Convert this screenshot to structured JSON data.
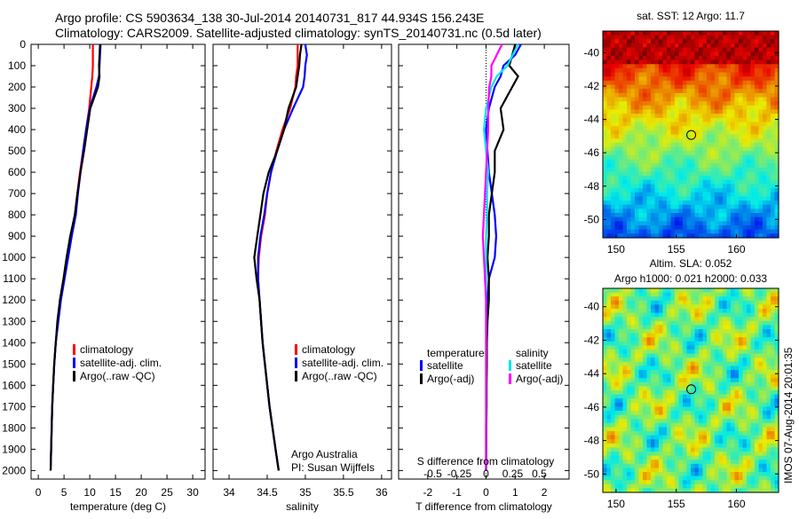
{
  "title_line1": "Argo profile: CS 5903634_138 30-Jul-2014 20140731_817 44.934S 156.243E",
  "title_line2": "Climatology: CARS2009. Satellite-adjusted climatology: synTS_20140731.nc (0.5d later)",
  "colors": {
    "climatology": "#ff0000",
    "satellite": "#0000ff",
    "argo": "#000000",
    "sal_satellite": "#00e5ee",
    "sal_argo": "#ff00ff"
  },
  "chart_data": [
    {
      "type": "line",
      "xlabel": "temperature (deg C)",
      "ylabel": "",
      "xlim": [
        -1.4,
        32.4
      ],
      "ylim": [
        2040,
        0
      ],
      "xticks": [
        "0",
        "5",
        "10",
        "15",
        "20",
        "25",
        "30"
      ],
      "xtick_vals": [
        0,
        5,
        10,
        15,
        20,
        25,
        30
      ],
      "yticks": [
        "0",
        "100",
        "200",
        "300",
        "400",
        "500",
        "600",
        "700",
        "800",
        "900",
        "1000",
        "1100",
        "1200",
        "1300",
        "1400",
        "1500",
        "1600",
        "1700",
        "1800",
        "1900",
        "2000"
      ],
      "depth": [
        0,
        50,
        100,
        150,
        200,
        300,
        400,
        500,
        600,
        700,
        800,
        900,
        1000,
        1100,
        1200,
        1300,
        1400,
        1500,
        1600,
        1700,
        1800,
        1900,
        2000
      ],
      "legend": [
        "climatology",
        "satellite-adj. clim.",
        "Argo(..raw -QC)"
      ],
      "series": [
        {
          "name": "climatology",
          "values": [
            10.6,
            10.6,
            10.6,
            10.5,
            10.3,
            9.9,
            9.3,
            8.7,
            8.1,
            7.6,
            7.1,
            6.3,
            5.6,
            5.0,
            4.3,
            3.8,
            3.4,
            3.1,
            2.9,
            2.7,
            2.6,
            2.5,
            2.4
          ]
        },
        {
          "name": "satellite-adj. clim.",
          "values": [
            12.1,
            12.0,
            11.9,
            11.8,
            11.3,
            10.0,
            9.3,
            8.7,
            8.2,
            7.7,
            7.3,
            6.5,
            5.8,
            5.1,
            4.4,
            3.9,
            3.4,
            3.1,
            2.9,
            2.7,
            2.6,
            2.5,
            2.4
          ]
        },
        {
          "name": "Argo(..raw -QC)",
          "values": [
            12.0,
            11.9,
            11.8,
            11.9,
            11.6,
            10.1,
            9.5,
            8.9,
            8.2,
            7.6,
            7.1,
            6.2,
            5.5,
            4.9,
            4.2,
            3.7,
            3.4,
            3.1,
            2.9,
            2.7,
            2.6,
            2.5,
            2.4
          ]
        }
      ]
    },
    {
      "type": "line",
      "xlabel": "salinity",
      "xlim": [
        33.79,
        36.13
      ],
      "ylim": [
        2040,
        0
      ],
      "xticks": [
        "34",
        "34.5",
        "35",
        "35.5",
        "36"
      ],
      "xtick_vals": [
        34,
        34.5,
        35,
        35.5,
        36
      ],
      "legend": [
        "climatology",
        "satellite-adj. clim.",
        "Argo(..raw -QC)"
      ],
      "annotation": [
        "Argo Australia",
        "PI: Susan Wijffels"
      ],
      "series": [
        {
          "name": "climatology",
          "values": [
            34.9,
            34.9,
            34.9,
            34.88,
            34.87,
            34.8,
            34.7,
            34.62,
            34.55,
            34.5,
            34.47,
            34.42,
            34.39,
            34.38,
            34.4,
            34.42,
            34.44,
            34.47,
            34.5,
            34.53,
            34.57,
            34.61,
            34.65
          ]
        },
        {
          "name": "satellite-adj. clim.",
          "values": [
            35.0,
            35.02,
            35.0,
            34.99,
            34.97,
            34.84,
            34.72,
            34.63,
            34.55,
            34.5,
            34.46,
            34.41,
            34.38,
            34.38,
            34.4,
            34.42,
            34.44,
            34.47,
            34.5,
            34.53,
            34.57,
            34.61,
            34.65
          ]
        },
        {
          "name": "Argo(..raw -QC)",
          "values": [
            34.95,
            34.93,
            34.92,
            34.9,
            34.88,
            34.78,
            34.72,
            34.63,
            34.52,
            34.45,
            34.41,
            34.37,
            34.33,
            34.36,
            34.4,
            34.42,
            34.44,
            34.47,
            34.5,
            34.53,
            34.57,
            34.61,
            34.65
          ]
        }
      ]
    },
    {
      "type": "line",
      "xlabel": "T difference from climatology",
      "xlabel2": "S difference from climatology",
      "xlim": [
        -3.0,
        2.85
      ],
      "ylim": [
        2040,
        0
      ],
      "xticks": [
        "-2",
        "-1",
        "0",
        "1",
        "2"
      ],
      "xtick_vals": [
        -2,
        -1,
        0,
        1,
        2
      ],
      "sticks": [
        "-0.5",
        "-0.25",
        "0",
        "0.25",
        "0.5"
      ],
      "stick_vals": [
        -0.5,
        -0.25,
        0,
        0.25,
        0.5
      ],
      "legend_t_title": "temperature",
      "legend_s_title": "salinity",
      "legend": [
        "satellite",
        "Argo(-adj)",
        "satellite",
        "Argo(-adj)"
      ],
      "series": [
        {
          "name": "T satellite",
          "values": [
            1.2,
            1.0,
            0.6,
            0.5,
            0.3,
            0.1,
            0.0,
            0.05,
            0.1,
            0.2,
            0.3,
            0.35,
            0.3,
            0.1,
            0.05,
            0.03,
            0.02,
            0.02,
            0.01,
            0.01,
            0,
            0,
            0
          ]
        },
        {
          "name": "T Argo(-adj)",
          "values": [
            1.0,
            0.9,
            0.8,
            1.1,
            0.9,
            0.5,
            0.6,
            0.3,
            0.3,
            0.2,
            0.1,
            0.1,
            0.05,
            0.1,
            0.1,
            0.05,
            0.03,
            0.03,
            0.02,
            0.02,
            0.01,
            0.01,
            0
          ]
        },
        {
          "name": "S satellite",
          "values": [
            0.3,
            0.25,
            0.2,
            0.1,
            0.05,
            0,
            -0.02,
            0,
            0.02,
            0.01,
            0.01,
            0,
            0,
            0,
            0,
            0,
            0,
            0,
            0,
            0,
            0,
            0,
            0
          ]
        },
        {
          "name": "S Argo(-adj)",
          "values": [
            0.15,
            0.1,
            0.05,
            0.05,
            0.03,
            0.02,
            0.02,
            0.01,
            0,
            -0.01,
            -0.02,
            -0.03,
            -0.02,
            -0.01,
            0,
            0,
            0,
            0,
            0,
            0,
            0,
            0,
            0
          ]
        }
      ]
    },
    {
      "type": "heatmap",
      "title": "sat. SST: 12 Argo: 11.7",
      "xlim": [
        148.9,
        163.5
      ],
      "ylim": [
        -51.1,
        -38.7
      ],
      "xticks": [
        "150",
        "155",
        "160"
      ],
      "xtick_vals": [
        150,
        155,
        160
      ],
      "yticks": [
        "-40",
        "-42",
        "-44",
        "-46",
        "-48",
        "-50"
      ],
      "ytick_vals": [
        -40,
        -42,
        -44,
        -46,
        -48,
        -50
      ],
      "marker": {
        "lon": 156.243,
        "lat": -44.934
      }
    },
    {
      "type": "heatmap",
      "title": "Altim. SLA: 0.052",
      "subtitle": "Argo h1000: 0.021 h2000: 0.033",
      "xlim": [
        148.9,
        163.5
      ],
      "ylim": [
        -51.1,
        -38.9
      ],
      "xticks": [
        "150",
        "155",
        "160"
      ],
      "xtick_vals": [
        150,
        155,
        160
      ],
      "yticks": [
        "-40",
        "-42",
        "-44",
        "-46",
        "-48",
        "-50"
      ],
      "ytick_vals": [
        -40,
        -42,
        -44,
        -46,
        -48,
        -50
      ],
      "marker": {
        "lon": 156.243,
        "lat": -44.934
      },
      "side_label": "IMOS 07-Aug-2014 20:01:35"
    }
  ]
}
